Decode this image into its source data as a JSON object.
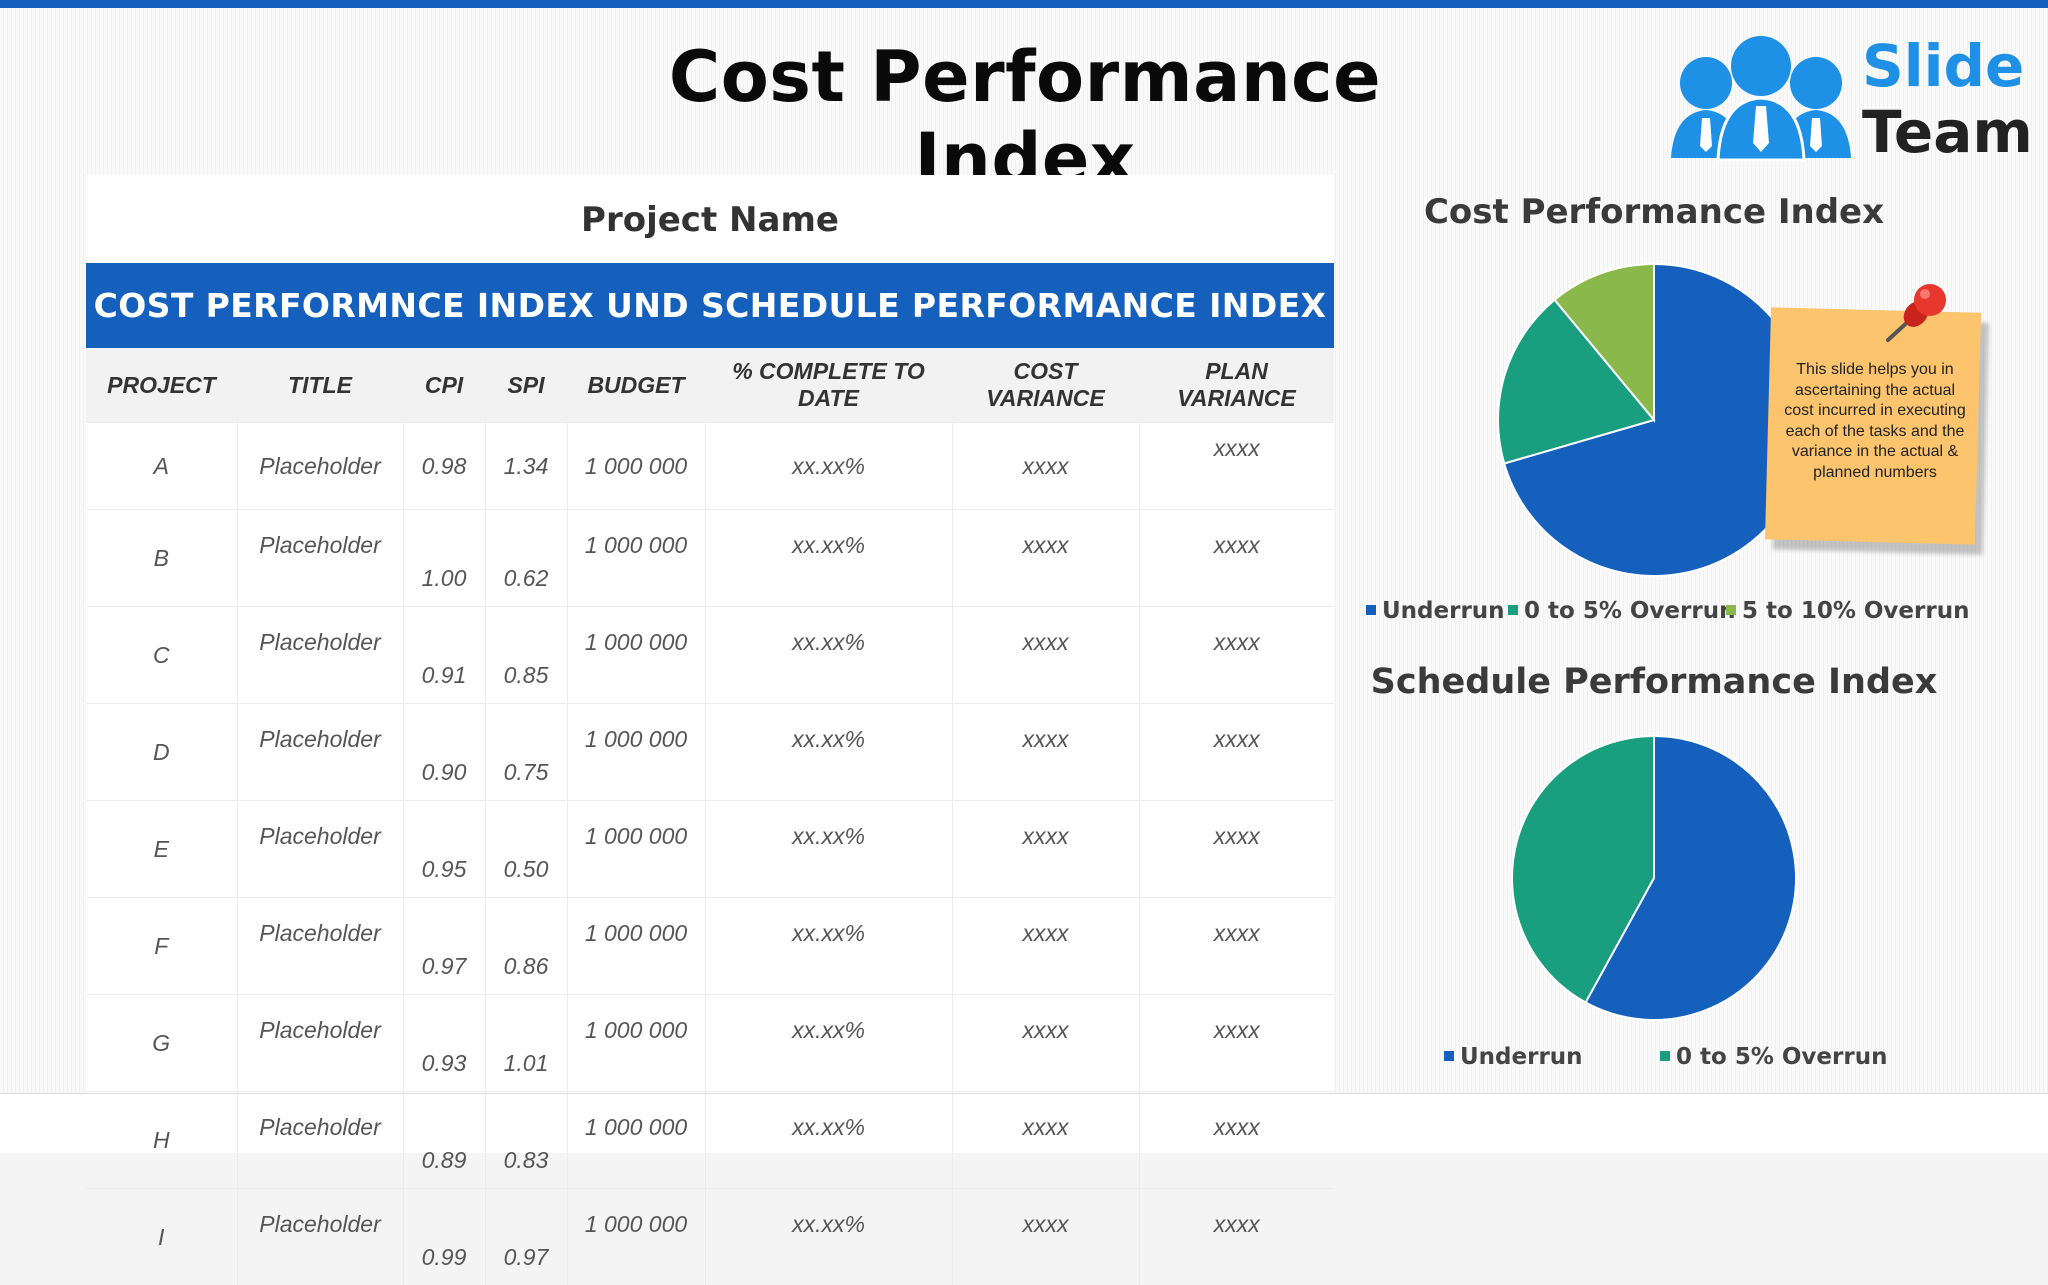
{
  "slide": {
    "title": "Cost Performance Index",
    "logo": {
      "line1": "Slide",
      "line2": "Team"
    }
  },
  "table": {
    "project_name": "Project Name",
    "banner": "COST PERFORMNCE INDEX UND SCHEDULE PERFORMANCE INDEX",
    "headers": {
      "project": "PROJECT",
      "title": "TITLE",
      "cpi": "CPI",
      "spi": "SPI",
      "budget": "BUDGET",
      "complete_l1": "% COMPLETE TO",
      "complete_l2": "DATE",
      "cost_l1": "COST",
      "cost_l2": "VARIANCE",
      "plan_l1": "PLAN",
      "plan_l2": "VARIANCE"
    },
    "rows": [
      {
        "project": "A",
        "title": "Placeholder",
        "cpi": "0.98",
        "spi": "1.34",
        "budget": "1 000 000",
        "complete": "xx.xx%",
        "cost_variance": "xxxx",
        "plan_variance": "xxxx"
      },
      {
        "project": "B",
        "title": "Placeholder",
        "cpi": "1.00",
        "spi": "0.62",
        "budget": "1 000 000",
        "complete": "xx.xx%",
        "cost_variance": "xxxx",
        "plan_variance": "xxxx"
      },
      {
        "project": "C",
        "title": "Placeholder",
        "cpi": "0.91",
        "spi": "0.85",
        "budget": "1 000 000",
        "complete": "xx.xx%",
        "cost_variance": "xxxx",
        "plan_variance": "xxxx"
      },
      {
        "project": "D",
        "title": "Placeholder",
        "cpi": "0.90",
        "spi": "0.75",
        "budget": "1 000 000",
        "complete": "xx.xx%",
        "cost_variance": "xxxx",
        "plan_variance": "xxxx"
      },
      {
        "project": "E",
        "title": "Placeholder",
        "cpi": "0.95",
        "spi": "0.50",
        "budget": "1 000 000",
        "complete": "xx.xx%",
        "cost_variance": "xxxx",
        "plan_variance": "xxxx"
      },
      {
        "project": "F",
        "title": "Placeholder",
        "cpi": "0.97",
        "spi": "0.86",
        "budget": "1 000 000",
        "complete": "xx.xx%",
        "cost_variance": "xxxx",
        "plan_variance": "xxxx"
      },
      {
        "project": "G",
        "title": "Placeholder",
        "cpi": "0.93",
        "spi": "1.01",
        "budget": "1 000 000",
        "complete": "xx.xx%",
        "cost_variance": "xxxx",
        "plan_variance": "xxxx"
      },
      {
        "project": "H",
        "title": "Placeholder",
        "cpi": "0.89",
        "spi": "0.83",
        "budget": "1 000 000",
        "complete": "xx.xx%",
        "cost_variance": "xxxx",
        "plan_variance": "xxxx"
      },
      {
        "project": "I",
        "title": "Placeholder",
        "cpi": "0.99",
        "spi": "0.97",
        "budget": "1 000 000",
        "complete": "xx.xx%",
        "cost_variance": "xxxx",
        "plan_variance": "xxxx"
      }
    ]
  },
  "note": {
    "text": "This slide helps you in ascertaining the actual cost incurred in executing each of the tasks and the variance in the actual & planned numbers"
  },
  "colors": {
    "underrun": "#1560bd",
    "overrun_0_5": "#1a9e80",
    "overrun_5_10": "#8bb84a",
    "accent": "#1560bd"
  },
  "chart_data": [
    {
      "type": "pie",
      "title": "Cost Performance Index",
      "categories": [
        "Underrun",
        "0 to 5% Overrun",
        "5 to 10% Overrun"
      ],
      "values": [
        70.5,
        18.5,
        11.0
      ],
      "legend": "bottom"
    },
    {
      "type": "pie",
      "title": "Schedule Performance Index",
      "categories": [
        "Underrun",
        "0 to 5% Overrun"
      ],
      "values": [
        58,
        42
      ],
      "legend": "bottom"
    }
  ]
}
